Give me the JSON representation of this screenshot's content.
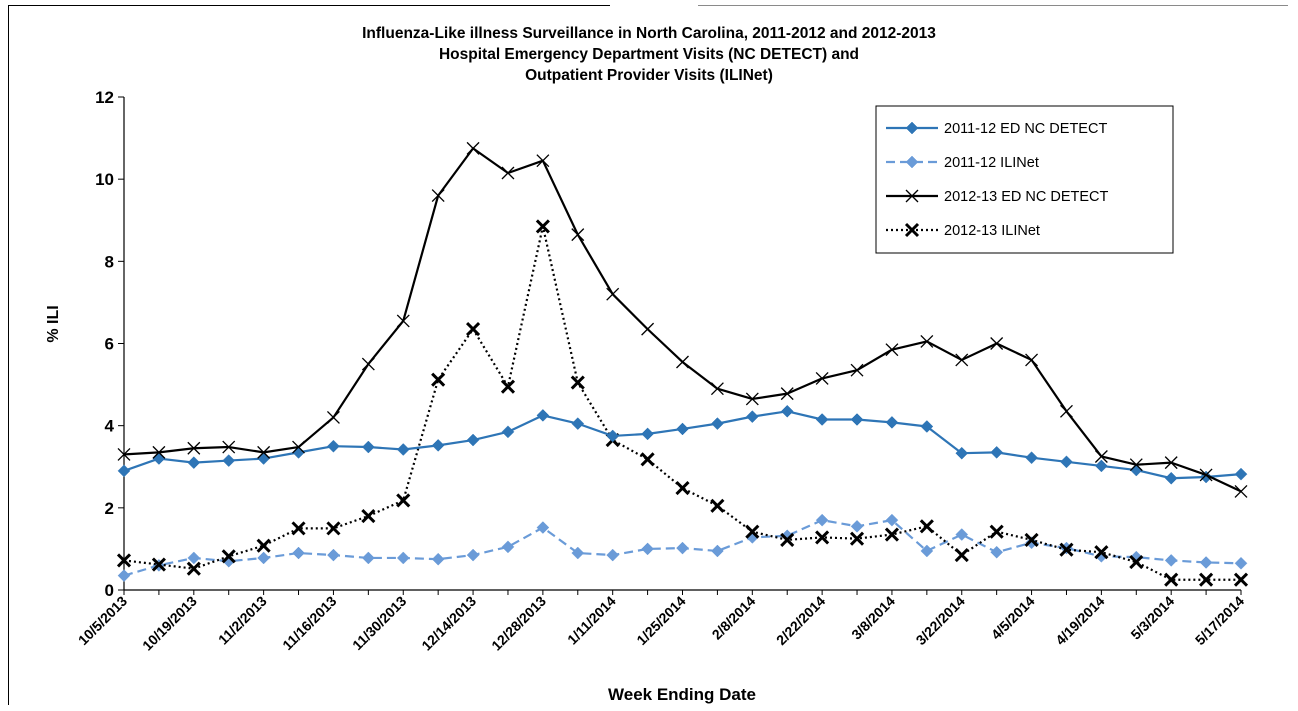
{
  "chart_data": {
    "type": "line",
    "title_lines": [
      "Influenza-Like illness Surveillance in North Carolina, 2011-2012 and 2012-2013",
      "Hospital Emergency Department Visits (NC DETECT) and",
      "Outpatient Provider Visits (ILINet)"
    ],
    "xlabel": "Week Ending Date",
    "ylabel": "% ILI",
    "ylim": [
      0,
      12
    ],
    "yticks": [
      0,
      2,
      4,
      6,
      8,
      10,
      12
    ],
    "x_tick_labels": [
      "10/5/2013",
      "10/19/2013",
      "11/2/2013",
      "11/16/2013",
      "11/30/2013",
      "12/14/2013",
      "12/28/2013",
      "1/11/2014",
      "1/25/2014",
      "2/8/2014",
      "2/22/2014",
      "3/8/2014",
      "3/22/2014",
      "4/5/2014",
      "4/19/2014",
      "5/3/2014",
      "5/17/2014"
    ],
    "x_weeks": [
      "10/5/2013",
      "10/12/2013",
      "10/19/2013",
      "10/26/2013",
      "11/2/2013",
      "11/9/2013",
      "11/16/2013",
      "11/23/2013",
      "11/30/2013",
      "12/7/2013",
      "12/14/2013",
      "12/21/2013",
      "12/28/2013",
      "1/4/2014",
      "1/11/2014",
      "1/18/2014",
      "1/25/2014",
      "2/1/2014",
      "2/8/2014",
      "2/15/2014",
      "2/22/2014",
      "3/1/2014",
      "3/8/2014",
      "3/15/2014",
      "3/22/2014",
      "3/29/2014",
      "4/5/2014",
      "4/12/2014",
      "4/19/2014",
      "4/26/2014",
      "5/3/2014",
      "5/10/2014",
      "5/17/2014"
    ],
    "legend_position": "top-right",
    "grid": false,
    "series": [
      {
        "name": "2011-12 ED NC DETECT",
        "color": "#2e75b6",
        "line": "solid",
        "marker": "diamond",
        "values": [
          2.9,
          3.2,
          3.1,
          3.15,
          3.2,
          3.35,
          3.5,
          3.48,
          3.42,
          3.52,
          3.65,
          3.85,
          4.25,
          4.05,
          3.75,
          3.8,
          3.92,
          4.05,
          4.22,
          4.35,
          4.15,
          4.15,
          4.08,
          3.98,
          3.33,
          3.35,
          3.22,
          3.12,
          3.02,
          2.92,
          2.72,
          2.75,
          2.82
        ]
      },
      {
        "name": "2011-12 ILINet",
        "color": "#6a9bd8",
        "line": "dashed",
        "marker": "diamond",
        "values": [
          0.35,
          0.6,
          0.78,
          0.7,
          0.78,
          0.9,
          0.85,
          0.78,
          0.78,
          0.75,
          0.85,
          1.05,
          1.52,
          0.9,
          0.85,
          1.0,
          1.02,
          0.95,
          1.28,
          1.32,
          1.7,
          1.55,
          1.7,
          0.95,
          1.35,
          0.92,
          1.15,
          1.02,
          0.82,
          0.8,
          0.72,
          0.67,
          0.65
        ]
      },
      {
        "name": "2012-13 ED NC DETECT",
        "color": "#000000",
        "line": "solid",
        "marker": "x",
        "values": [
          3.3,
          3.35,
          3.45,
          3.48,
          3.35,
          3.48,
          4.2,
          5.5,
          6.55,
          9.6,
          10.75,
          10.15,
          10.45,
          8.65,
          7.2,
          6.35,
          5.55,
          4.9,
          4.65,
          4.78,
          5.15,
          5.35,
          5.85,
          6.05,
          5.6,
          6.0,
          5.6,
          4.35,
          3.25,
          3.05,
          3.1,
          2.8,
          2.4
        ]
      },
      {
        "name": "2012-13 ILINet",
        "color": "#000000",
        "line": "dotted",
        "marker": "x-bold",
        "values": [
          0.72,
          0.62,
          0.52,
          0.82,
          1.08,
          1.5,
          1.5,
          1.8,
          2.18,
          5.12,
          6.35,
          4.95,
          8.85,
          5.05,
          3.65,
          3.18,
          2.48,
          2.05,
          1.42,
          1.22,
          1.28,
          1.25,
          1.35,
          1.55,
          0.85,
          1.42,
          1.22,
          0.98,
          0.92,
          0.68,
          0.25,
          0.25,
          0.25
        ]
      }
    ]
  }
}
